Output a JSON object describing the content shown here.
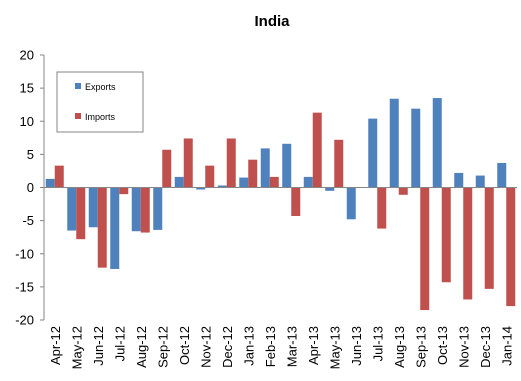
{
  "chart_data": {
    "type": "bar",
    "title": "India",
    "xlabel": "",
    "ylabel": "",
    "ylim": [
      -20,
      20
    ],
    "yticks": [
      20,
      15,
      10,
      5,
      0,
      -5,
      -10,
      -15,
      -20
    ],
    "grid": false,
    "legend_position": "top-left",
    "categories": [
      "Apr-12",
      "May-12",
      "Jun-12",
      "Jul-12",
      "Aug-12",
      "Sep-12",
      "Oct-12",
      "Nov-12",
      "Dec-12",
      "Jan-13",
      "Feb-13",
      "Mar-13",
      "Apr-13",
      "May-13",
      "Jun-13",
      "Jul-13",
      "Aug-13",
      "Sep-13",
      "Oct-13",
      "Nov-13",
      "Dec-13",
      "Jan-14"
    ],
    "series": [
      {
        "name": "Exports",
        "color": "#4F81BD",
        "values": [
          1.3,
          -6.5,
          -6.0,
          -12.3,
          -6.6,
          -6.4,
          1.6,
          -0.3,
          0.3,
          1.5,
          5.9,
          6.6,
          1.6,
          -0.5,
          -4.8,
          10.4,
          13.4,
          11.9,
          13.5,
          2.2,
          1.8,
          3.7
        ]
      },
      {
        "name": "Imports",
        "color": "#C0504D",
        "values": [
          3.3,
          -7.8,
          -12.1,
          -1.0,
          -6.8,
          5.7,
          7.4,
          3.3,
          7.4,
          4.2,
          1.6,
          -4.3,
          11.3,
          7.2,
          0,
          -6.2,
          -1.1,
          -18.5,
          -14.3,
          -16.9,
          -15.3,
          -17.9
        ]
      }
    ]
  }
}
